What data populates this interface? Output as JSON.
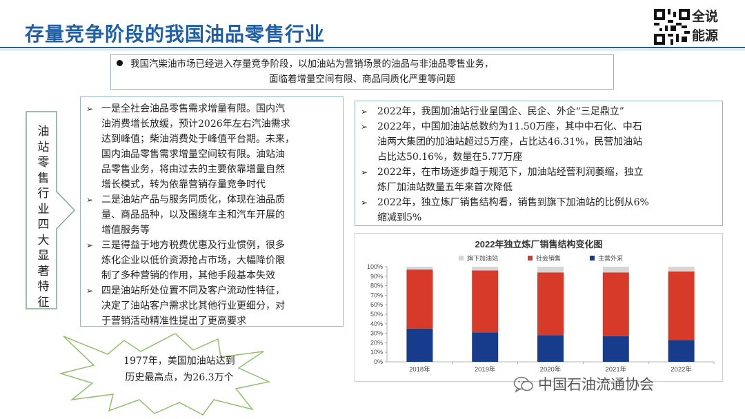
{
  "header": {
    "title": "存量竞争阶段的我国油品零售行业",
    "brand_line1": "全说",
    "brand_line2": "能源"
  },
  "summary": {
    "line1": "我国汽柴油市场已经进入存量竞争阶段，以加油站为营销场景的油品与非油品零售业务，",
    "line2": "面临着增量空间有限、商品同质化严重等问题"
  },
  "side_label": "油站零售行业四大显著特征",
  "features": [
    {
      "lines": [
        "一是全社会油品零售需求增量有限。国内汽",
        "油消费增长放缓，预计2026年左右汽油需求",
        "达到峰值；柴油消费处于峰值平台期。未来，",
        "国内油品零售需求增量空间较有限。油站油",
        "品零售业务，将由过去的主要依靠增量自然",
        "增长模式，转为依靠营销存量竞争时代"
      ]
    },
    {
      "lines": [
        "二是油站产品与服务同质化，体现在油品质",
        "量、商品品种，以及围绕车主和汽车开展的",
        "增值服务等"
      ]
    },
    {
      "lines": [
        "三是得益于地方税费优惠及行业惯例，很多",
        "炼化企业以低价资源抢占市场，大幅降价限",
        "制了多种营销的作用，其他手段基本失效"
      ]
    },
    {
      "lines": [
        "四是油站所处位置不同及客户流动性特征，",
        "决定了油站客户需求比其他行业更细分，对",
        "于营销活动精准性提出了更高要求"
      ]
    }
  ],
  "facts": [
    {
      "lines": [
        "2022年，我国加油站行业呈国企、民企、外企“三足鼎立”"
      ]
    },
    {
      "lines": [
        "2022年，中国加油站总数约为11.50万座，其中中石化、中石",
        "油两大集团的加油站超过5万座，占比达46.31%，民营加油站",
        "占比达50.16%，数量在5.77万座"
      ]
    },
    {
      "lines": [
        "2022年，在市场逐步趋于规范下，加油站经营利润萎缩，独立",
        "炼厂加油站数量五年来首次降低"
      ]
    },
    {
      "lines": [
        "2022年，独立炼厂销售结构看，销售到旗下加油站的比例从6%",
        "缩减到5%"
      ]
    }
  ],
  "star_text": {
    "line1": "1977年，美国加油站达到",
    "line2": "历史最高点，为26.3万个"
  },
  "watermark": "中国石油流通协会",
  "icons": {
    "wechat": "wechat-icon",
    "qr": "qr-code-icon",
    "bullet": "arrow-bullet-icon"
  },
  "colors": {
    "title": "#1f5fa8",
    "main_sales": "#173c8c",
    "social_sales": "#d83a2a",
    "station_sales": "#d6d6d6"
  },
  "chart_data": {
    "type": "bar",
    "stacked": true,
    "title": "2022年独立炼厂销售结构变化图",
    "categories": [
      "2018年",
      "2019年",
      "2020年",
      "2021年",
      "2022年"
    ],
    "series": [
      {
        "name": "主营外采",
        "values": [
          35,
          31,
          28,
          27,
          23
        ],
        "color": "#173c8c"
      },
      {
        "name": "社会销售",
        "values": [
          62,
          65,
          66,
          67,
          72
        ],
        "color": "#d83a2a"
      },
      {
        "name": "旗下加油站",
        "values": [
          3,
          4,
          6,
          6,
          5
        ],
        "color": "#d6d6d6"
      }
    ],
    "legend_order": [
      "旗下加油站",
      "社会销售",
      "主营外采"
    ],
    "legend_position": "top-left",
    "ylim": [
      0,
      100
    ],
    "yticks": [
      "0%",
      "10%",
      "20%",
      "30%",
      "40%",
      "50%",
      "60%",
      "70%",
      "80%",
      "90%",
      "100%"
    ],
    "grid": false
  }
}
